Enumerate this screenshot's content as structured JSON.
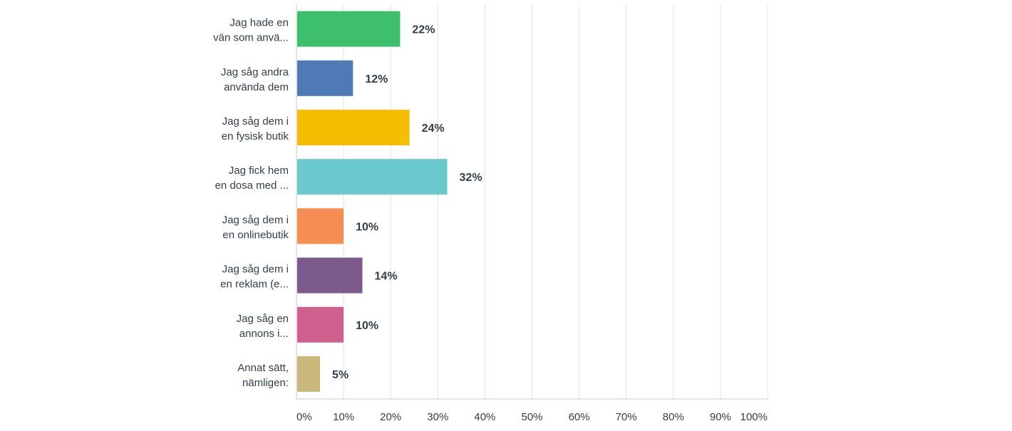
{
  "chart_data": {
    "type": "bar",
    "orientation": "horizontal",
    "categories": [
      [
        "Jag hade en",
        "vän som anvä..."
      ],
      [
        "Jag såg andra",
        "använda dem"
      ],
      [
        "Jag såg dem i",
        "en fysisk butik"
      ],
      [
        "Jag fick hem",
        "en dosa med ..."
      ],
      [
        "Jag såg dem i",
        "en onlinebutik"
      ],
      [
        "Jag såg dem i",
        "en reklam (e..."
      ],
      [
        "Jag såg en",
        "annons i..."
      ],
      [
        "Annat sätt,",
        "nämligen:"
      ]
    ],
    "values": [
      22,
      12,
      24,
      32,
      10,
      14,
      10,
      5
    ],
    "value_labels": [
      "22%",
      "12%",
      "24%",
      "32%",
      "10%",
      "14%",
      "10%",
      "5%"
    ],
    "colors": [
      "#3dbf6b",
      "#4e7ab5",
      "#f5be00",
      "#6bc8cc",
      "#f68d52",
      "#7d5a8e",
      "#d15f8e",
      "#c9b87a"
    ],
    "x_ticks": [
      "0%",
      "10%",
      "20%",
      "30%",
      "40%",
      "50%",
      "60%",
      "70%",
      "80%",
      "90%",
      "100%"
    ],
    "xlim": [
      0,
      100
    ],
    "grid": true,
    "title": "",
    "xlabel": "",
    "ylabel": ""
  }
}
